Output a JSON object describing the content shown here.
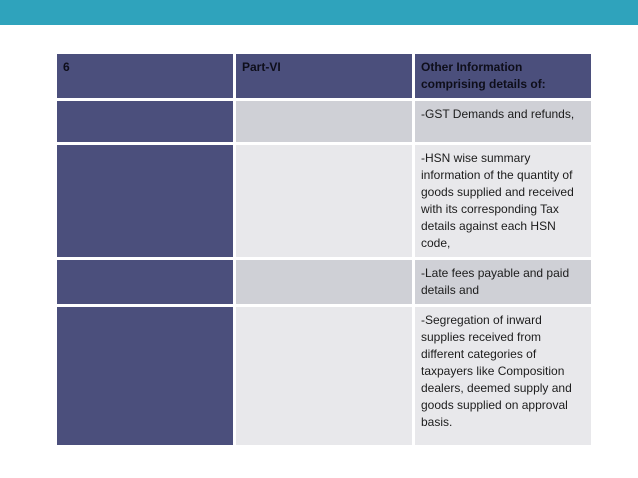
{
  "colors": {
    "accent_teal": "#2fa3bc",
    "navy": "#4b4f7c",
    "gray_dark": "#cfd0d6",
    "gray_light": "#e8e8eb",
    "header_text": "#0e0e1a",
    "body_text": "#1c1c1c",
    "slide_bg": "#ffffff"
  },
  "table": {
    "header": {
      "serial": "6",
      "part": "Part-VI",
      "description": "Other Information comprising details of:"
    },
    "rows": [
      {
        "serial": "",
        "part": "",
        "detail": "-GST Demands and refunds,"
      },
      {
        "serial": "",
        "part": "",
        "detail": "-HSN wise summary information of the quantity of goods supplied and received with its corresponding Tax details against each HSN code,"
      },
      {
        "serial": "",
        "part": "",
        "detail": "-Late fees payable and paid details and"
      },
      {
        "serial": "",
        "part": "",
        "detail": "-Segregation of inward supplies received from different categories of taxpayers like Composition dealers, deemed supply and goods supplied on approval basis."
      }
    ]
  }
}
